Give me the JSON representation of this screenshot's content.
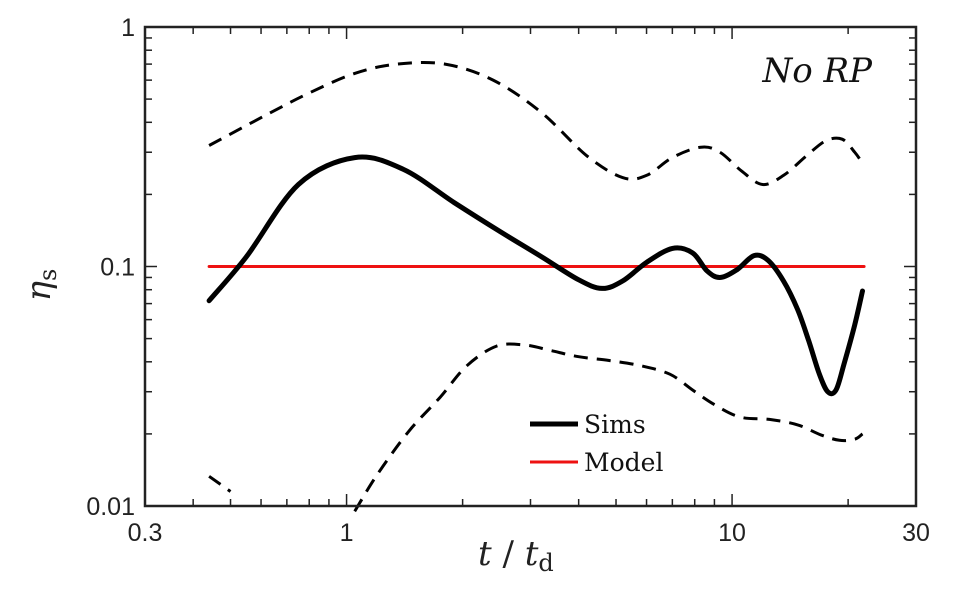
{
  "chart_data": {
    "type": "line",
    "title": "",
    "xlabel": "t / t_d",
    "xlabel_parts": {
      "var": "t",
      "sep": " / ",
      "denom": "t",
      "denom_sub": "d"
    },
    "ylabel": "η_s",
    "ylabel_parts": {
      "var": "η",
      "sub": "s"
    },
    "xscale": "log",
    "yscale": "log",
    "xlim": [
      0.3,
      30
    ],
    "ylim": [
      0.01,
      1
    ],
    "xticks": [
      0.3,
      1,
      10,
      30
    ],
    "xtick_labels": [
      "0.3",
      "1",
      "10",
      "30"
    ],
    "yticks": [
      0.01,
      0.1,
      1
    ],
    "ytick_labels": [
      "0.01",
      "0.1",
      "1"
    ],
    "annotation": "No  RP",
    "legend_position": "bottom-center",
    "series": [
      {
        "name": "Sims",
        "in_legend": true,
        "color": "#000000",
        "style": "solid",
        "width": 5,
        "x": [
          0.44,
          0.55,
          0.75,
          1.05,
          1.4,
          1.9,
          2.5,
          3.2,
          4.0,
          4.6,
          5.2,
          6.0,
          7.0,
          7.9,
          8.6,
          9.3,
          10.3,
          11.4,
          12.4,
          13.6,
          14.8,
          15.8,
          16.8,
          17.7,
          18.6,
          19.5,
          20.8,
          21.8
        ],
        "y": [
          0.072,
          0.11,
          0.22,
          0.285,
          0.255,
          0.185,
          0.14,
          0.11,
          0.088,
          0.081,
          0.087,
          0.104,
          0.119,
          0.114,
          0.096,
          0.09,
          0.097,
          0.111,
          0.106,
          0.087,
          0.066,
          0.049,
          0.036,
          0.03,
          0.0305,
          0.039,
          0.057,
          0.079
        ]
      },
      {
        "name": "Model",
        "in_legend": true,
        "color": "#ee1111",
        "style": "solid",
        "width": 3,
        "x": [
          0.44,
          22
        ],
        "y": [
          0.1,
          0.1
        ]
      },
      {
        "name": "Upper bound",
        "in_legend": false,
        "color": "#000000",
        "style": "dashed",
        "width": 3,
        "x": [
          0.44,
          0.62,
          0.8,
          1.05,
          1.35,
          1.8,
          2.4,
          3.2,
          4.2,
          5.2,
          6.0,
          7.0,
          8.3,
          9.3,
          10.6,
          12.0,
          13.6,
          15.6,
          17.5,
          19.3,
          20.8,
          21.8
        ],
        "y": [
          0.32,
          0.43,
          0.53,
          0.64,
          0.7,
          0.7,
          0.6,
          0.44,
          0.29,
          0.235,
          0.24,
          0.285,
          0.315,
          0.3,
          0.25,
          0.22,
          0.24,
          0.29,
          0.335,
          0.34,
          0.3,
          0.27
        ]
      },
      {
        "name": "Lower bound (left segment)",
        "in_legend": false,
        "color": "#000000",
        "style": "dashed",
        "width": 3,
        "x": [
          0.44,
          0.5
        ],
        "y": [
          0.0133,
          0.0115
        ]
      },
      {
        "name": "Lower bound",
        "in_legend": false,
        "color": "#000000",
        "style": "dashed",
        "width": 3,
        "x": [
          1.05,
          1.2,
          1.45,
          1.75,
          2.05,
          2.45,
          2.9,
          3.4,
          4.0,
          4.8,
          5.8,
          6.9,
          7.9,
          9.0,
          10.5,
          12.5,
          14.8,
          17.0,
          19.0,
          20.8,
          21.8
        ],
        "y": [
          0.0095,
          0.0135,
          0.0205,
          0.0285,
          0.0385,
          0.0465,
          0.047,
          0.0445,
          0.042,
          0.0405,
          0.0385,
          0.0355,
          0.0305,
          0.0265,
          0.0235,
          0.023,
          0.0218,
          0.0198,
          0.0188,
          0.019,
          0.02
        ]
      }
    ]
  }
}
